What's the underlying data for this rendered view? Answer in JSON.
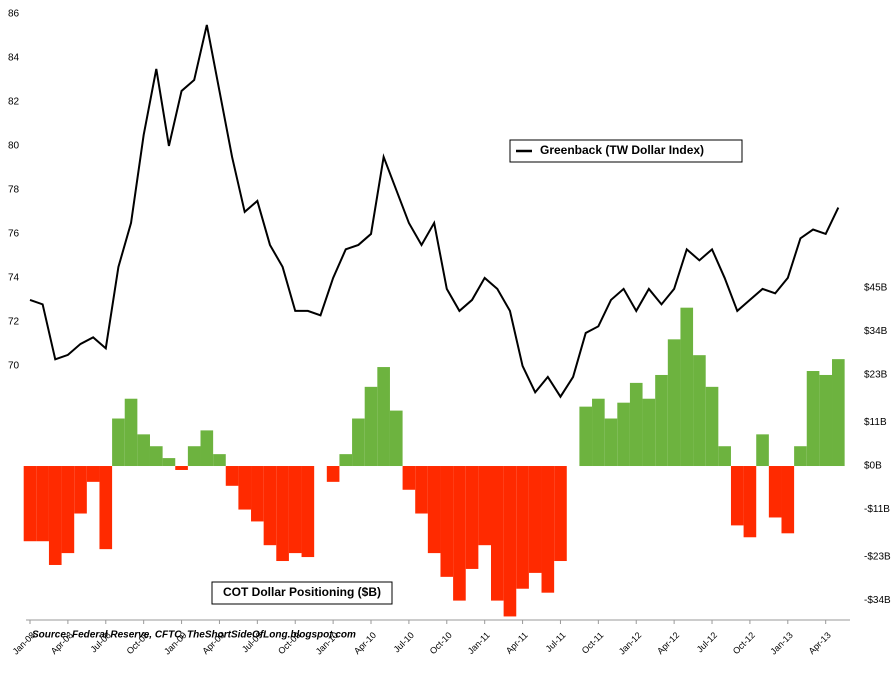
{
  "chart_data": {
    "type": "bar-line",
    "categories": [
      "Jan-08",
      null,
      null,
      "Apr-08",
      null,
      null,
      "Jul-08",
      null,
      null,
      "Oct-08",
      null,
      null,
      "Jan-09",
      null,
      null,
      "Apr-09",
      null,
      null,
      "Jul-09",
      null,
      null,
      "Oct-09",
      null,
      null,
      "Jan-10",
      null,
      null,
      "Apr-10",
      null,
      null,
      "Jul-10",
      null,
      null,
      "Oct-10",
      null,
      null,
      "Jan-11",
      null,
      null,
      "Apr-11",
      null,
      null,
      "Jul-11",
      null,
      null,
      "Oct-11",
      null,
      null,
      "Jan-12",
      null,
      null,
      "Apr-12",
      null,
      null,
      "Jul-12",
      null,
      null,
      "Oct-12",
      null,
      null,
      "Jan-13",
      null,
      null,
      "Apr-13",
      null
    ],
    "series": [
      {
        "name": "Greenback (TW Dollar Index)",
        "type": "line",
        "color": "#000000",
        "values": [
          73.0,
          72.8,
          70.3,
          70.5,
          71.0,
          71.3,
          70.8,
          74.5,
          76.5,
          80.5,
          83.5,
          80.0,
          82.5,
          83.0,
          85.5,
          82.5,
          79.5,
          77.0,
          77.5,
          75.5,
          74.5,
          72.5,
          72.5,
          72.3,
          74.0,
          75.3,
          75.5,
          76.0,
          79.5,
          78.0,
          76.5,
          75.5,
          76.5,
          73.5,
          72.5,
          73.0,
          74.0,
          73.5,
          72.5,
          70.0,
          68.8,
          69.5,
          68.6,
          69.5,
          71.5,
          71.8,
          73.0,
          73.5,
          72.5,
          73.5,
          72.8,
          73.5,
          75.3,
          74.8,
          75.3,
          74.0,
          72.5,
          73.0,
          73.5,
          73.3,
          74.0,
          75.8,
          76.2,
          76.0,
          77.2
        ]
      },
      {
        "name": "COT Dollar Positioning ($B)",
        "type": "bar",
        "axis": "y2",
        "color": "#6db33f",
        "negative_color": "#ff2a00",
        "values": [
          -19,
          -19,
          -25,
          -22,
          -12,
          -4,
          -21,
          12,
          17,
          8,
          5,
          2,
          -1,
          5,
          9,
          3,
          -5,
          -11,
          -14,
          -20,
          -24,
          -22,
          -23,
          0,
          -4,
          3,
          12,
          20,
          25,
          14,
          -6,
          -12,
          -22,
          -28,
          -34,
          -26,
          -20,
          -34,
          -38,
          -31,
          -27,
          -32,
          -24,
          0,
          15,
          17,
          12,
          16,
          21,
          17,
          23,
          32,
          40,
          28,
          20,
          5,
          -15,
          -18,
          8,
          -13,
          -17,
          5,
          24,
          23,
          27
        ]
      }
    ],
    "ylim": [
      58.45,
      86.18
    ],
    "yticks": [
      70,
      72,
      74,
      76,
      78,
      80,
      82,
      84,
      86
    ],
    "y2lim": [
      -38.9,
      115.2
    ],
    "y2ticks": [
      {
        "value": -34,
        "label": "-$34B"
      },
      {
        "value": -23,
        "label": "-$23B"
      },
      {
        "value": -11,
        "label": "-$11B"
      },
      {
        "value": 0,
        "label": "$0B"
      },
      {
        "value": 11,
        "label": "$11B"
      },
      {
        "value": 23,
        "label": "$23B"
      },
      {
        "value": 34,
        "label": "$34B"
      },
      {
        "value": 45,
        "label": "$45B"
      }
    ],
    "source": "Source: Federal Reserve, CFTC, TheShortSideOfLong.blogspot.com"
  }
}
